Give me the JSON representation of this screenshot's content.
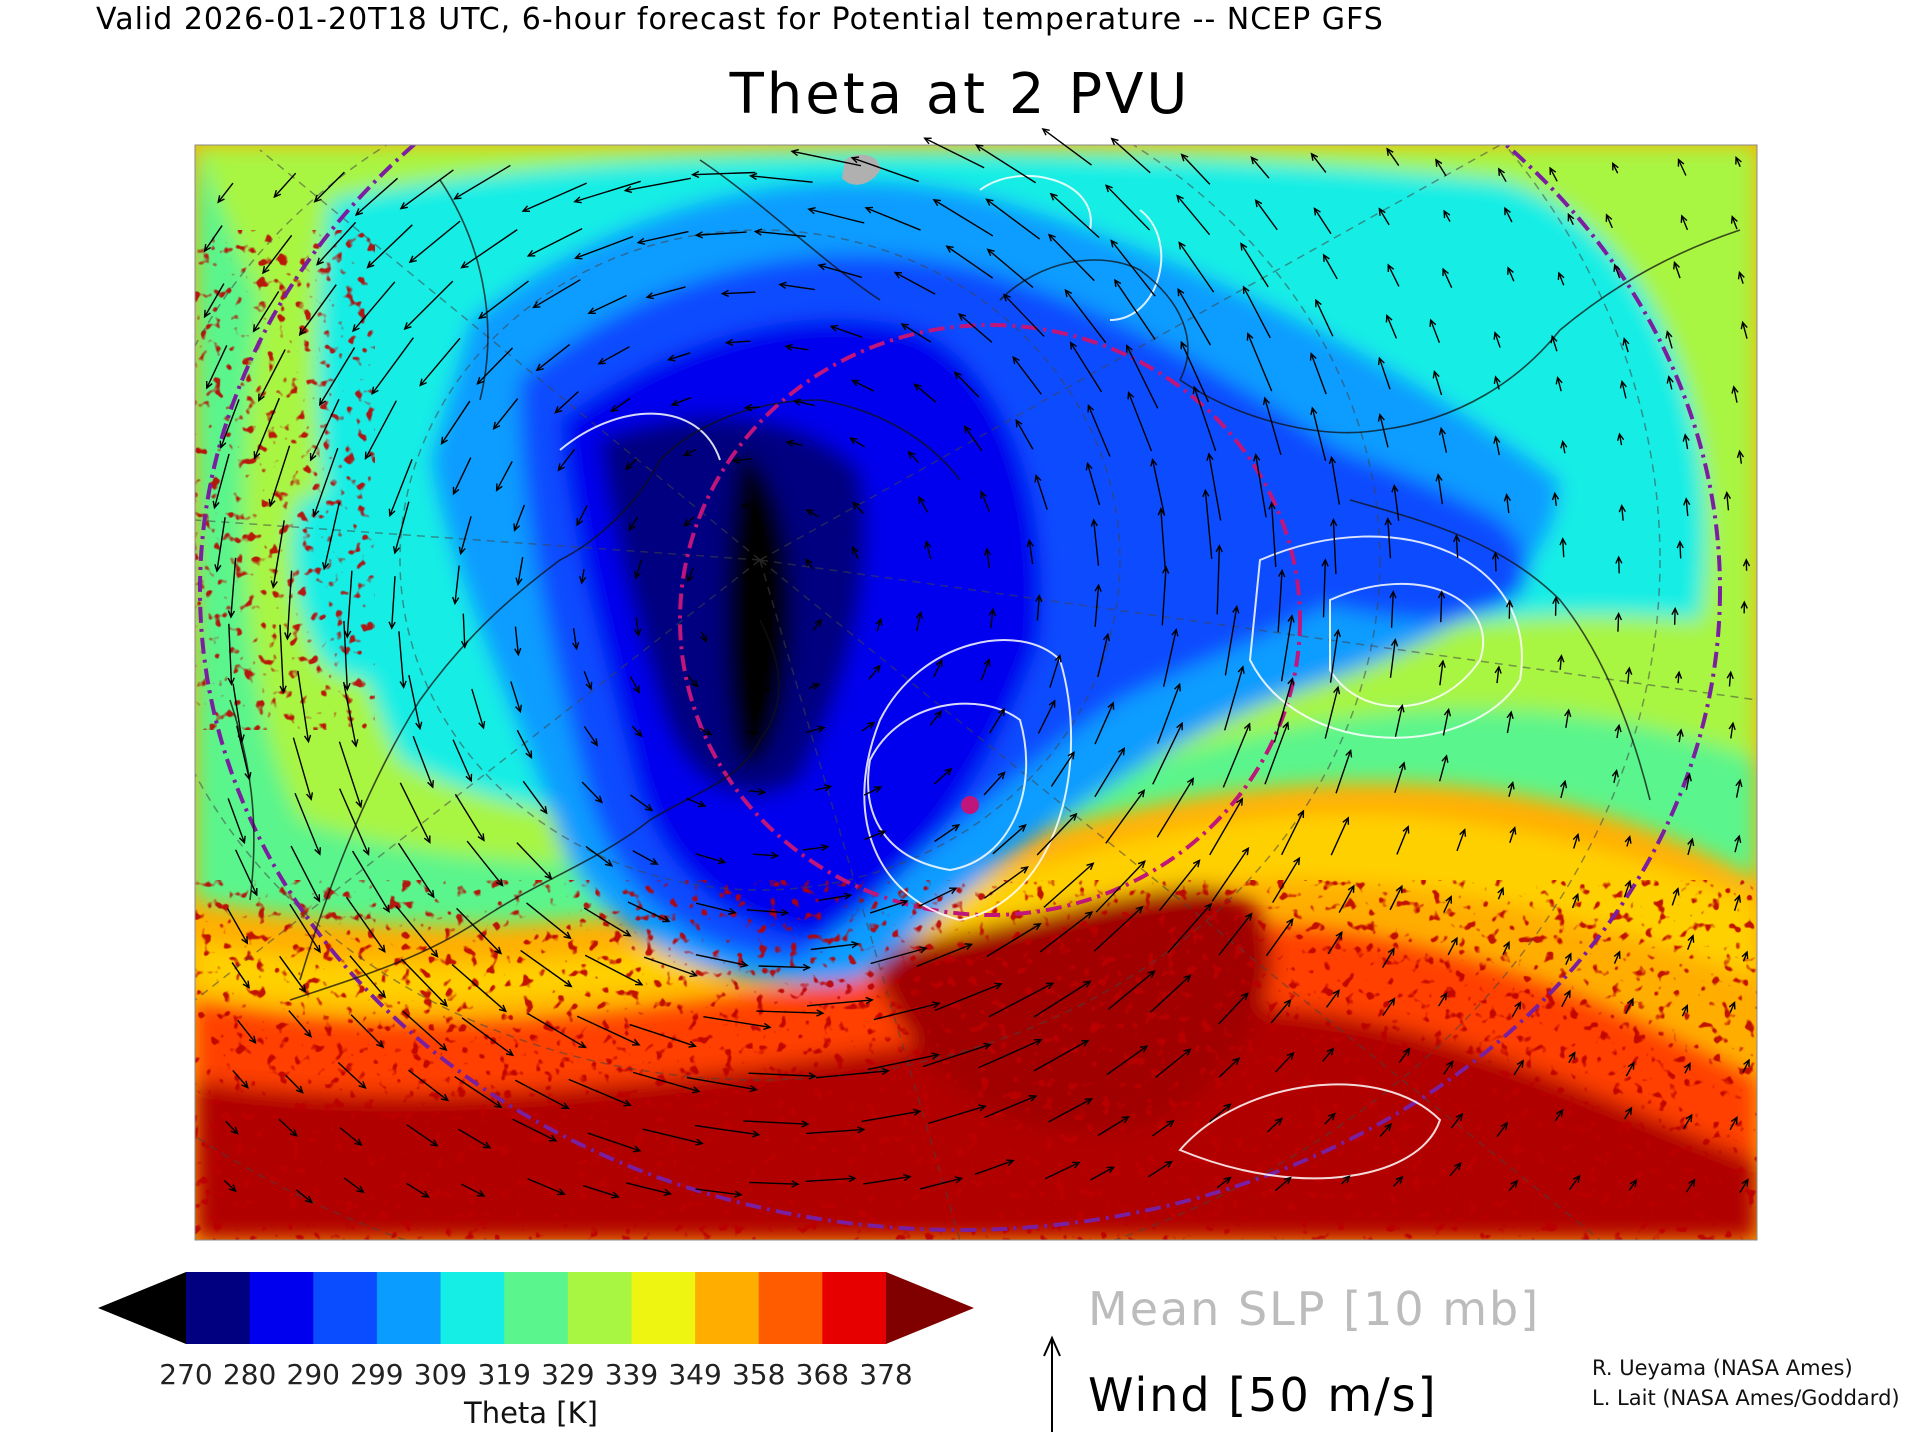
{
  "header": {
    "valid_line": "Valid 2026-01-20T18 UTC, 6-hour forecast for Potential temperature -- NCEP GFS"
  },
  "map": {
    "title": "Theta at 2 PVU"
  },
  "colorbar": {
    "label": "Theta [K]",
    "ticks": [
      "270",
      "280",
      "290",
      "299",
      "309",
      "319",
      "329",
      "339",
      "349",
      "358",
      "368",
      "378"
    ],
    "colors": [
      "#000000",
      "#000080",
      "#0000ee",
      "#0a4cff",
      "#0a9cff",
      "#15eee5",
      "#5af58c",
      "#a8f542",
      "#eef511",
      "#ffae00",
      "#ff5c00",
      "#e60000",
      "#800000"
    ]
  },
  "legend": {
    "slp_label": "Mean SLP [10 mb]",
    "wind_label": "Wind [50 m/s]"
  },
  "credits": {
    "line1": "R. Ueyama (NASA Ames)",
    "line2": "L. Lait (NASA Ames/Goddard)"
  }
}
